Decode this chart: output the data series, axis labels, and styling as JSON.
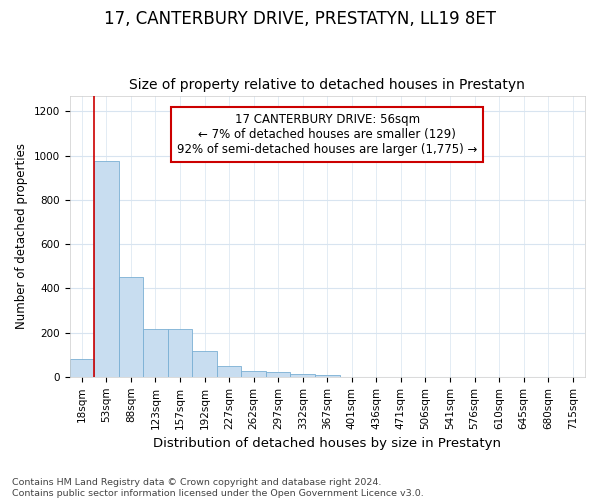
{
  "title": "17, CANTERBURY DRIVE, PRESTATYN, LL19 8ET",
  "subtitle": "Size of property relative to detached houses in Prestatyn",
  "xlabel": "Distribution of detached houses by size in Prestatyn",
  "ylabel": "Number of detached properties",
  "bar_color": "#c8ddf0",
  "bar_edge_color": "#7aafd4",
  "bin_labels": [
    "18sqm",
    "53sqm",
    "88sqm",
    "123sqm",
    "157sqm",
    "192sqm",
    "227sqm",
    "262sqm",
    "297sqm",
    "332sqm",
    "367sqm",
    "401sqm",
    "436sqm",
    "471sqm",
    "506sqm",
    "541sqm",
    "576sqm",
    "610sqm",
    "645sqm",
    "680sqm",
    "715sqm"
  ],
  "bar_values": [
    80,
    975,
    450,
    215,
    215,
    118,
    48,
    25,
    20,
    12,
    10,
    0,
    0,
    0,
    0,
    0,
    0,
    0,
    0,
    0,
    0
  ],
  "property_line_x": 0.5,
  "property_line_color": "#cc0000",
  "annotation_text": "17 CANTERBURY DRIVE: 56sqm\n← 7% of detached houses are smaller (129)\n92% of semi-detached houses are larger (1,775) →",
  "annotation_box_color": "#ffffff",
  "annotation_box_edge_color": "#cc0000",
  "ylim": [
    0,
    1270
  ],
  "yticks": [
    0,
    200,
    400,
    600,
    800,
    1000,
    1200
  ],
  "footer_line1": "Contains HM Land Registry data © Crown copyright and database right 2024.",
  "footer_line2": "Contains public sector information licensed under the Open Government Licence v3.0.",
  "background_color": "#ffffff",
  "plot_background_color": "#ffffff",
  "grid_color": "#d8e4f0",
  "title_fontsize": 12,
  "subtitle_fontsize": 10,
  "xlabel_fontsize": 9.5,
  "ylabel_fontsize": 8.5,
  "tick_fontsize": 7.5,
  "annotation_fontsize": 8.5,
  "footer_fontsize": 6.8
}
